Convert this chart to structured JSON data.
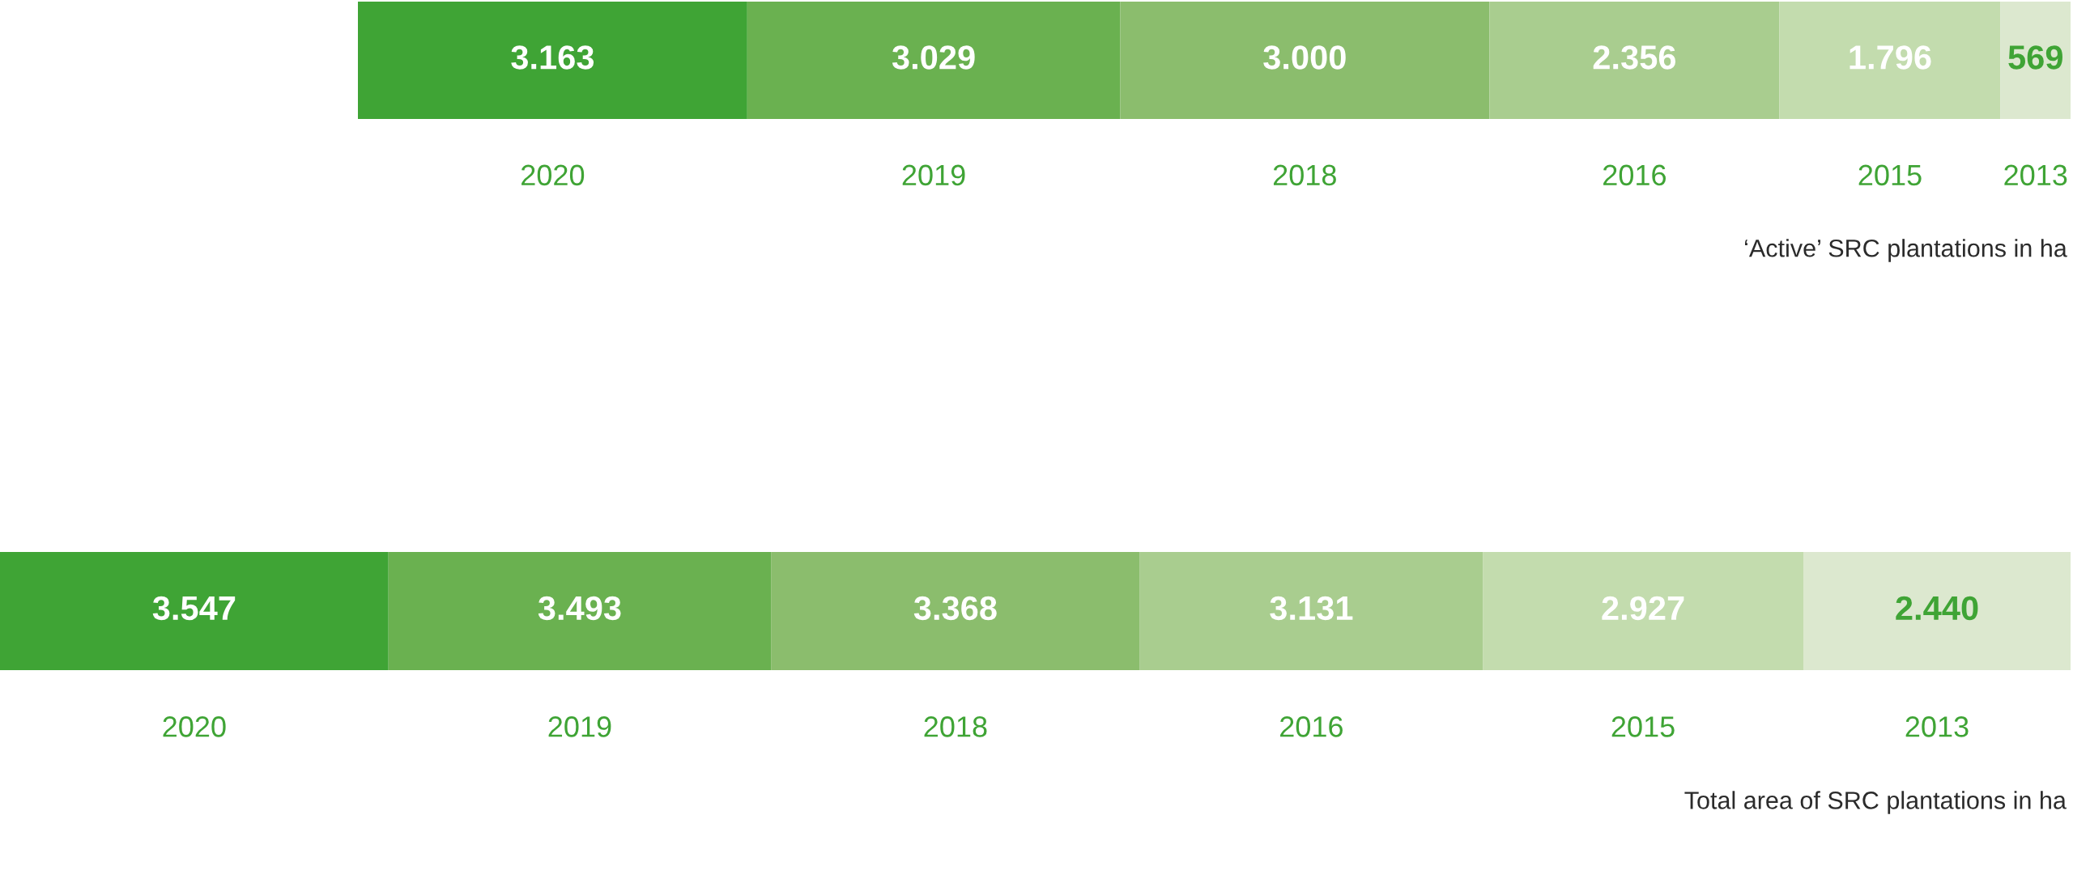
{
  "chart_data": [
    {
      "type": "other",
      "categories": [
        "2020",
        "2019",
        "2018",
        "2016",
        "2015",
        "2013"
      ],
      "values": [
        3163,
        3029,
        3000,
        2356,
        1796,
        569
      ],
      "value_labels": [
        "3.163",
        "3.029",
        "3.000",
        "2.356",
        "1.796",
        "569"
      ],
      "colors": [
        "#3fa435",
        "#6ab150",
        "#8bbd6d",
        "#a9cd8f",
        "#c3dcae",
        "#dce8cf"
      ],
      "annotations": [
        "‘Active’ SRC plantations in ha"
      ]
    },
    {
      "type": "other",
      "categories": [
        "2020",
        "2019",
        "2018",
        "2016",
        "2015",
        "2013"
      ],
      "values": [
        3547,
        3493,
        3368,
        3131,
        2927,
        2440
      ],
      "value_labels": [
        "3.547",
        "3.493",
        "3.368",
        "3.131",
        "2.927",
        "2.440"
      ],
      "colors": [
        "#3fa435",
        "#6ab150",
        "#8bbd6d",
        "#a9cd8f",
        "#c3dcae",
        "#dce8cf"
      ],
      "annotations": [
        "Total area of SRC plantations in ha"
      ]
    }
  ]
}
